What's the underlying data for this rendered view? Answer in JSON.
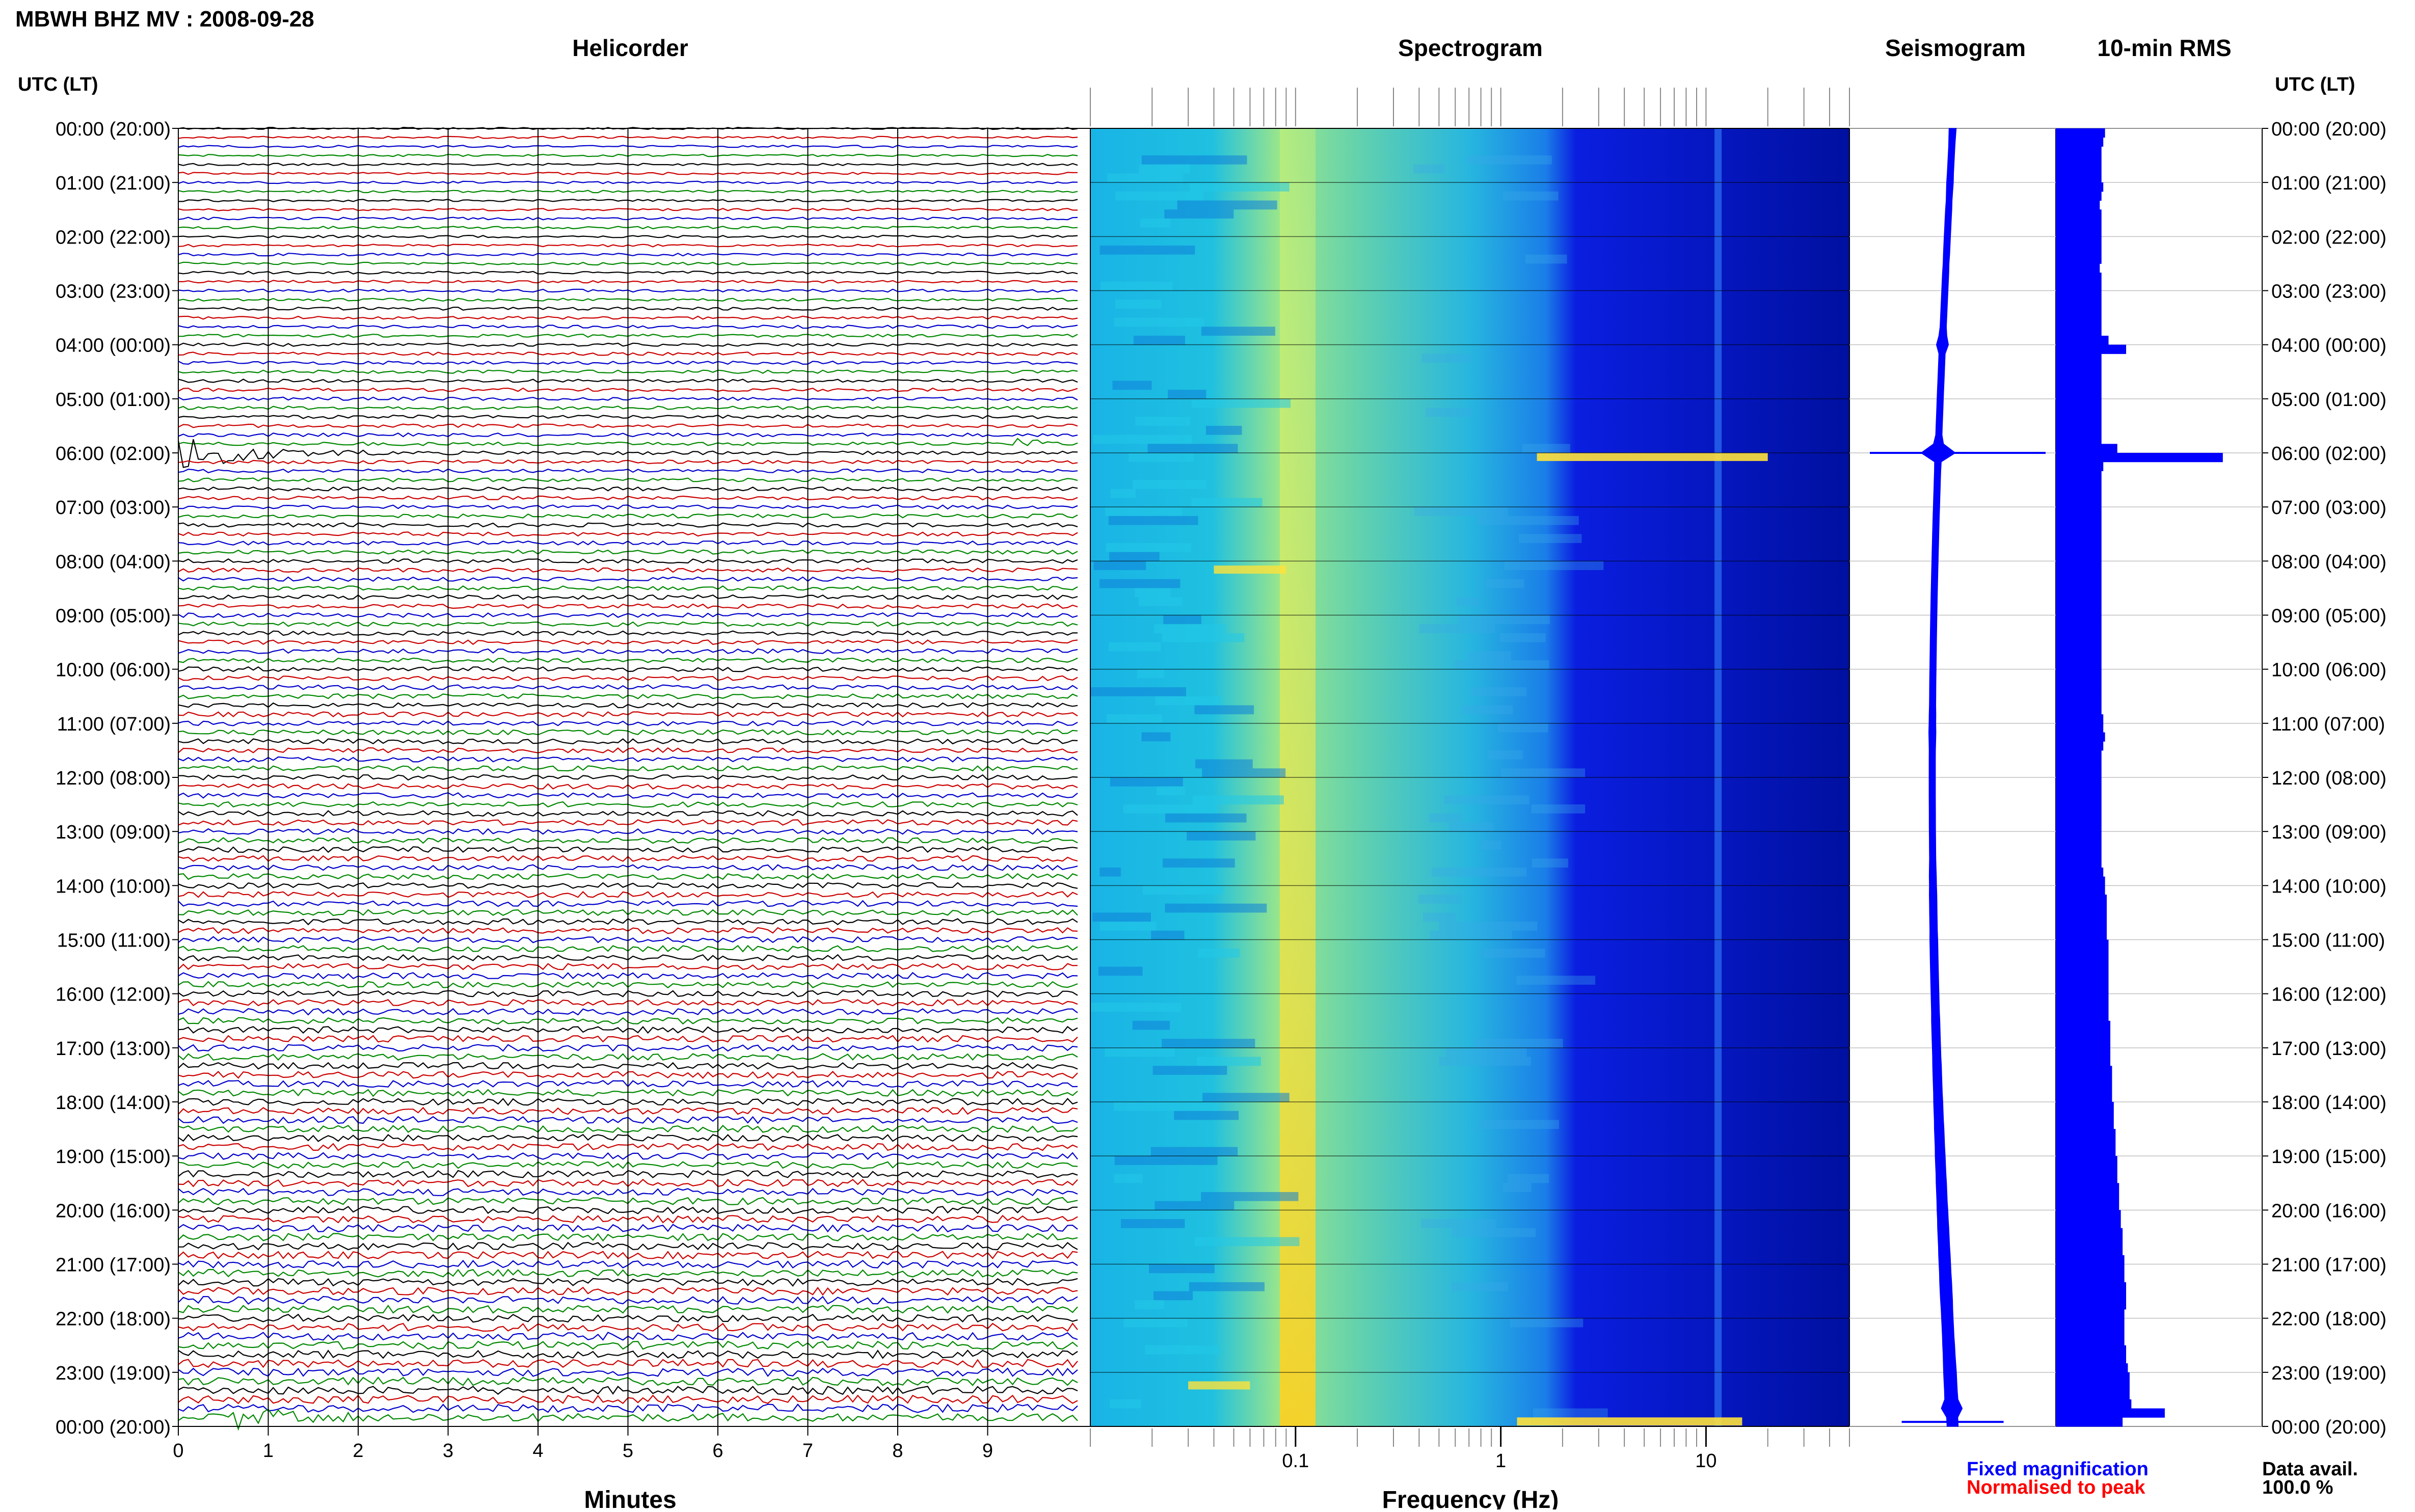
{
  "header": {
    "title": "MBWH BHZ MV : 2008-09-28",
    "utc_label_left": "UTC (LT)",
    "utc_label_right": "UTC (LT)"
  },
  "panels": {
    "helicorder": "Helicorder",
    "spectrogram": "Spectrogram",
    "seismogram": "Seismogram",
    "rms": "10-min RMS"
  },
  "axes": {
    "minutes_label": "Minutes",
    "frequency_label": "Frequency (Hz)"
  },
  "legend": {
    "fixed": "Fixed magnification",
    "fixed_color": "#0000ff",
    "normalised": "Normalised to peak",
    "normalised_color": "#ff0000"
  },
  "data_avail": {
    "label": "Data avail.",
    "value": "100.0 %"
  },
  "colors": {
    "trace_cycle": [
      "#000000",
      "#cc0000",
      "#0000cc",
      "#008800"
    ],
    "rms_bar": "#0000ff",
    "grid": "#000000"
  },
  "chart_data": {
    "type": "heatmap",
    "time_ticks": [
      "00:00 (20:00)",
      "01:00 (21:00)",
      "02:00 (22:00)",
      "03:00 (23:00)",
      "04:00 (00:00)",
      "05:00 (01:00)",
      "06:00 (02:00)",
      "07:00 (03:00)",
      "08:00 (04:00)",
      "09:00 (05:00)",
      "10:00 (06:00)",
      "11:00 (07:00)",
      "12:00 (08:00)",
      "13:00 (09:00)",
      "14:00 (10:00)",
      "15:00 (11:00)",
      "16:00 (12:00)",
      "17:00 (13:00)",
      "18:00 (14:00)",
      "19:00 (15:00)",
      "20:00 (16:00)",
      "21:00 (17:00)",
      "22:00 (18:00)",
      "23:00 (19:00)",
      "00:00 (20:00)"
    ],
    "minutes_ticks": [
      "0",
      "1",
      "2",
      "3",
      "4",
      "5",
      "6",
      "7",
      "8",
      "9"
    ],
    "minutes_range": [
      0,
      10
    ],
    "frequency_ticks": [
      {
        "value": 0.1,
        "label": "0.1"
      },
      {
        "value": 1,
        "label": "1"
      },
      {
        "value": 10,
        "label": "10"
      }
    ],
    "frequency_range": [
      0.01,
      50
    ],
    "frequency_scale": "log",
    "spectral_peak_hz": 0.2,
    "helicorder_events": [
      {
        "row": 18,
        "start_min": 1.1,
        "end_min": 1.5,
        "amp": 0.35
      },
      {
        "row": 36,
        "start_min": 0.0,
        "end_min": 2.2,
        "amp": 1.6
      },
      {
        "row": 35,
        "start_min": 9.3,
        "end_min": 10.0,
        "amp": 0.6
      },
      {
        "row": 66,
        "start_min": 8.5,
        "end_min": 10.0,
        "amp": 0.2
      },
      {
        "row": 143,
        "start_min": 0.6,
        "end_min": 2.6,
        "amp": 0.8
      }
    ],
    "rms_10min": [
      2.8,
      2.7,
      2.6,
      2.6,
      2.6,
      2.6,
      2.7,
      2.6,
      2.5,
      2.6,
      2.6,
      2.6,
      2.6,
      2.6,
      2.6,
      2.5,
      2.6,
      2.6,
      2.6,
      2.6,
      2.6,
      2.6,
      2.6,
      3.0,
      4.0,
      2.6,
      2.6,
      2.6,
      2.6,
      2.6,
      2.6,
      2.6,
      2.6,
      2.6,
      2.6,
      3.5,
      9.5,
      2.7,
      2.6,
      2.6,
      2.6,
      2.6,
      2.6,
      2.6,
      2.6,
      2.6,
      2.6,
      2.6,
      2.6,
      2.6,
      2.6,
      2.6,
      2.6,
      2.6,
      2.6,
      2.6,
      2.6,
      2.6,
      2.6,
      2.6,
      2.6,
      2.6,
      2.6,
      2.6,
      2.6,
      2.7,
      2.7,
      2.8,
      2.7,
      2.6,
      2.6,
      2.6,
      2.6,
      2.6,
      2.6,
      2.6,
      2.6,
      2.6,
      2.6,
      2.6,
      2.6,
      2.6,
      2.7,
      2.8,
      2.8,
      2.9,
      2.9,
      2.9,
      2.9,
      2.9,
      3.0,
      3.0,
      3.0,
      3.0,
      3.0,
      3.0,
      3.0,
      3.0,
      3.0,
      3.1,
      3.1,
      3.1,
      3.1,
      3.1,
      3.2,
      3.2,
      3.2,
      3.2,
      3.3,
      3.3,
      3.3,
      3.4,
      3.4,
      3.4,
      3.5,
      3.5,
      3.5,
      3.6,
      3.6,
      3.6,
      3.7,
      3.7,
      3.8,
      3.8,
      3.8,
      3.9,
      3.9,
      3.9,
      4.0,
      4.0,
      4.0,
      3.9,
      3.9,
      3.9,
      3.9,
      4.0,
      4.0,
      4.1,
      4.2,
      4.2,
      4.2,
      4.3,
      6.2,
      3.8
    ],
    "rms_range": [
      0,
      10
    ]
  }
}
